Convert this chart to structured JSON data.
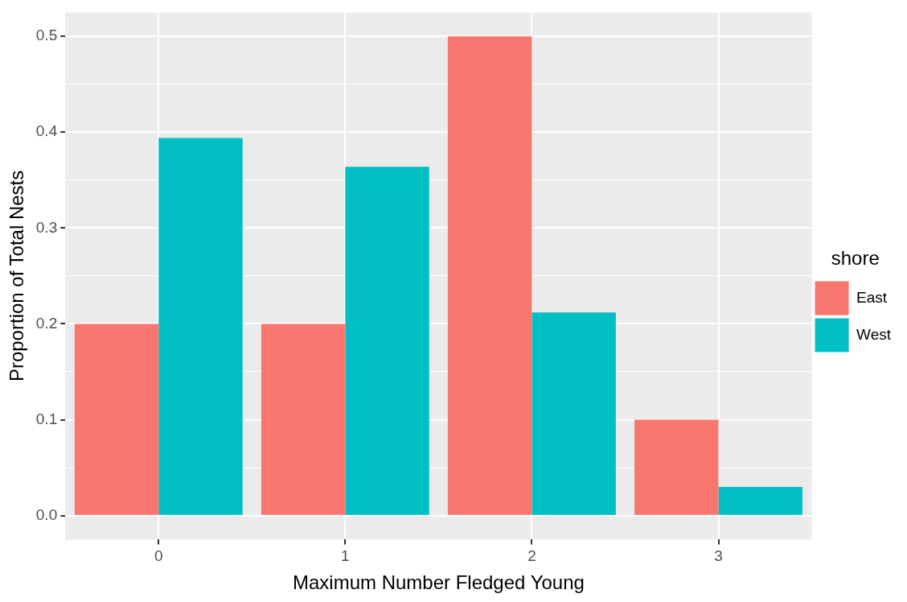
{
  "chart_data": {
    "type": "bar",
    "xlabel": "Maximum Number Fledged Young",
    "ylabel": "Proportion of Total Nests",
    "legend_title": "shore",
    "categories": [
      "0",
      "1",
      "2",
      "3"
    ],
    "series": [
      {
        "name": "East",
        "color": "#f8766d",
        "values": [
          0.2,
          0.2,
          0.5,
          0.1
        ]
      },
      {
        "name": "West",
        "color": "#00bfc4",
        "values": [
          0.394,
          0.364,
          0.212,
          0.03
        ]
      }
    ],
    "ylim": [
      -0.025,
      0.525
    ],
    "yticks": [
      {
        "value": 0.0,
        "label": "0.0"
      },
      {
        "value": 0.05,
        "label": null
      },
      {
        "value": 0.1,
        "label": "0.1"
      },
      {
        "value": 0.15,
        "label": null
      },
      {
        "value": 0.2,
        "label": "0.2"
      },
      {
        "value": 0.25,
        "label": null
      },
      {
        "value": 0.3,
        "label": "0.3"
      },
      {
        "value": 0.35,
        "label": null
      },
      {
        "value": 0.4,
        "label": "0.4"
      },
      {
        "value": 0.45,
        "label": null
      },
      {
        "value": 0.5,
        "label": "0.5"
      }
    ],
    "grid": true,
    "legend": "right"
  }
}
